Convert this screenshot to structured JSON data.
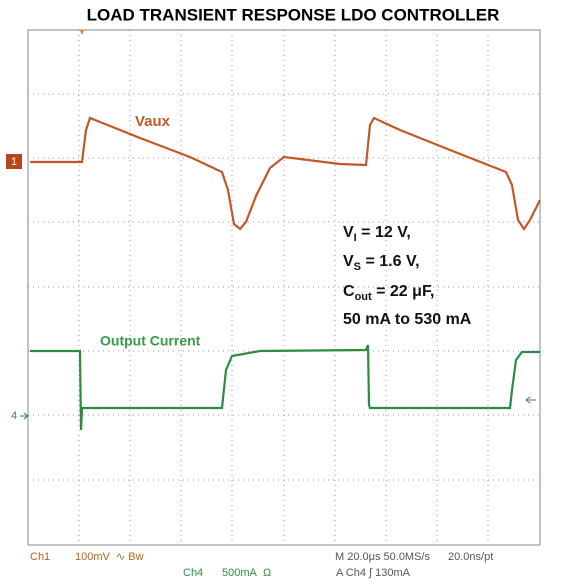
{
  "title": "LOAD TRANSIENT RESPONSE LDO CONTROLLER",
  "traces": {
    "vaux": "Vaux",
    "current": "Output Current"
  },
  "markers": {
    "ch1": "1",
    "ch4": "4"
  },
  "conditions": [
    {
      "main": "V",
      "sub": "I",
      "rest": " = 12 V,"
    },
    {
      "main": "V",
      "sub": "S",
      "rest": " = 1.6 V,"
    },
    {
      "main": "C",
      "sub": "out",
      "rest": " = 22 μF,"
    },
    {
      "main": "50 mA to 530 mA"
    }
  ],
  "status": {
    "ch1": "Ch1",
    "ch1_scale": "100mV",
    "bw": "∿ Bw",
    "timebase": "M 20.0μs 50.0MS/s",
    "resolution": "20.0ns/pt",
    "ch4": "Ch4",
    "ch4_scale": "500mA",
    "ohm": "Ω",
    "trigger": "A Ch4 ∫ 130mA"
  }
}
